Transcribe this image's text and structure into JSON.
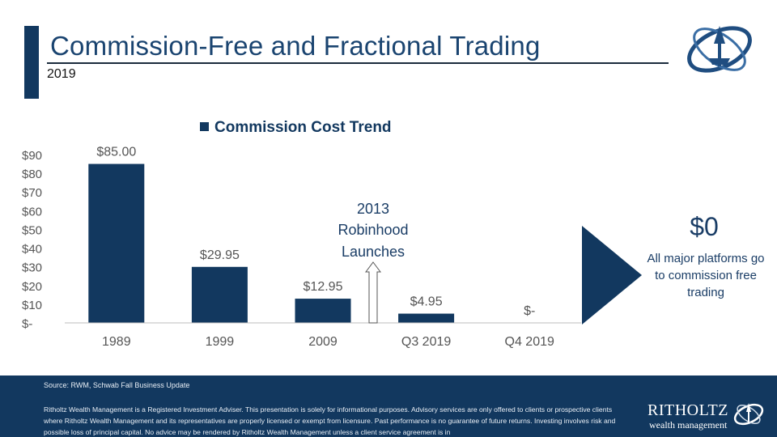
{
  "header": {
    "title": "Commission-Free and Fractional Trading",
    "subtitle": "2019"
  },
  "chart_data": {
    "type": "bar",
    "title": "Commission Cost Trend",
    "legend": [
      "Commission Cost Trend"
    ],
    "categories": [
      "1989",
      "1999",
      "2009",
      "Q3 2019",
      "Q4 2019"
    ],
    "values": [
      85.0,
      29.95,
      12.95,
      4.95,
      0
    ],
    "data_labels": [
      "$85.00",
      "$29.95",
      "$12.95",
      "$4.95",
      "$-"
    ],
    "yticks": [
      0,
      10,
      20,
      30,
      40,
      50,
      60,
      70,
      80,
      90
    ],
    "ytick_labels": [
      "$-",
      "$10",
      "$20",
      "$30",
      "$40",
      "$50",
      "$60",
      "$70",
      "$80",
      "$90"
    ],
    "ylim": [
      0,
      90
    ],
    "xlabel": "",
    "ylabel": "",
    "bar_color": "#12385f",
    "annotation": {
      "lines": [
        "2013",
        "Robinhood",
        "Launches"
      ],
      "between": [
        "2009",
        "Q3 2019"
      ]
    }
  },
  "callout": {
    "value": "$0",
    "text": "All major platforms go to commission free trading"
  },
  "footer": {
    "source": "Source: RWM, Schwab Fall Business Update",
    "disclaimer": "Ritholtz Wealth Management is a Registered Investment Adviser. This presentation is solely for informational purposes. Advisory services are only offered to clients or prospective clients where Ritholtz Wealth Management and its representatives are properly licensed or exempt from licensure. Past performance is no guarantee of future returns. Investing involves risk and possible loss of principal capital. No advice may be rendered by Ritholtz Wealth Management unless a client service agreement is in",
    "brand": "RITHOLTZ",
    "tagline": "wealth management"
  },
  "colors": {
    "navy": "#12385f",
    "title_blue": "#1a4470"
  }
}
